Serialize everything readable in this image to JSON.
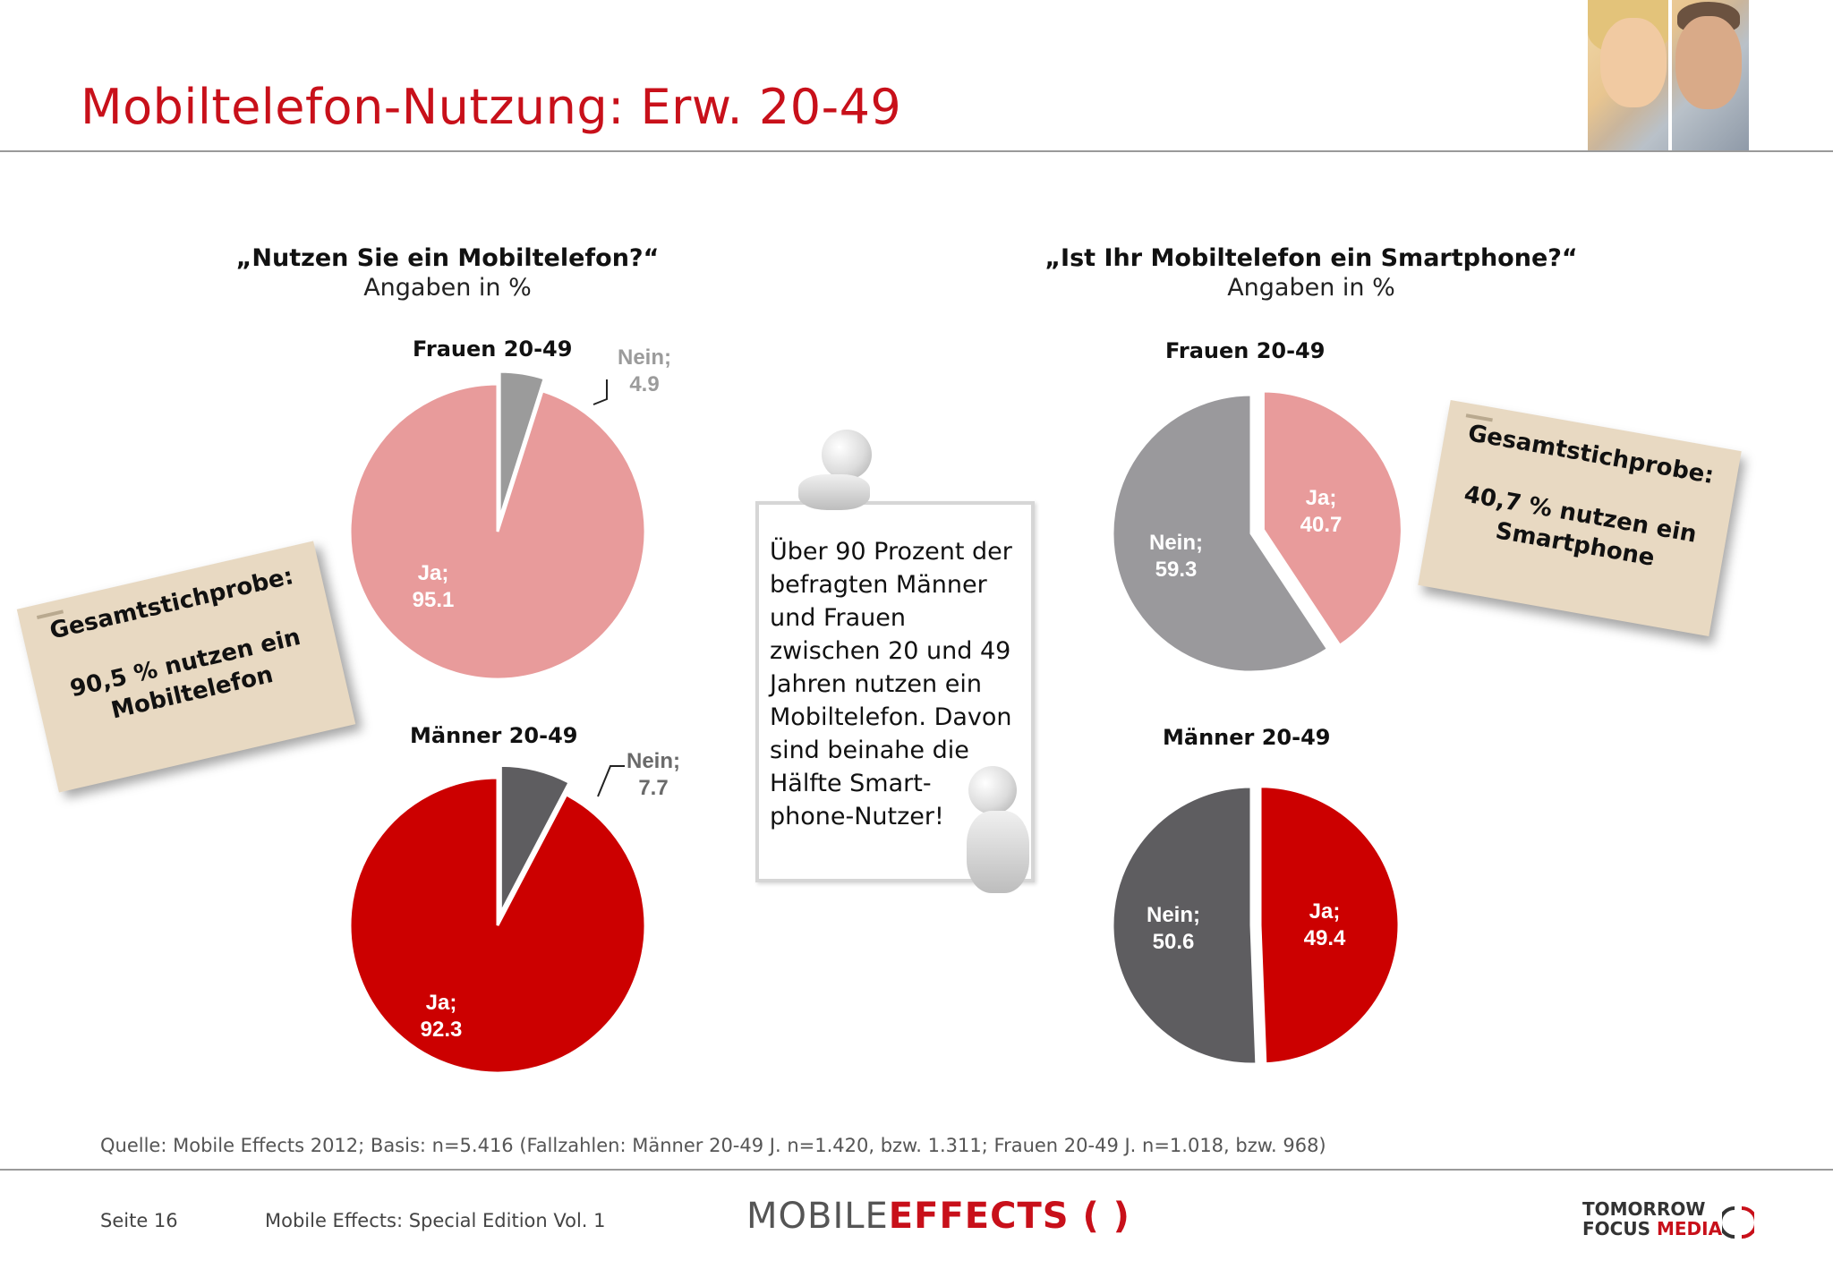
{
  "page": {
    "title": "Mobiltelefon-Nutzung: Erw. 20-49",
    "source": "Quelle: Mobile Effects 2012; Basis: n=5.416 (Fallzahlen: Männer 20-49 J. n=1.420, bzw. 1.311; Frauen 20-49 J. n=1.018, bzw. 968)",
    "page_number": "Seite 16",
    "edition": "Mobile Effects: Special Edition Vol. 1",
    "logo_mobile": "MOBILE",
    "logo_effects": "EFFECTS",
    "logo_tf_line1": "TOMORROW",
    "logo_tf_line2a": "FOCUS",
    "logo_tf_line2b": "MEDIA"
  },
  "left_section": {
    "question": "„Nutzen Sie ein Mobiltelefon?“",
    "unit": "Angaben in %"
  },
  "right_section": {
    "question": "„Ist Ihr Mobiltelefon ein Smartphone?“",
    "unit": "Angaben in %"
  },
  "note_left": {
    "title": "Gesamtstichprobe:",
    "line1": "90,5 % nutzen ein",
    "line2": "Mobiltelefon"
  },
  "note_right": {
    "title": "Gesamtstichprobe:",
    "line1": "40,7 % nutzen ein",
    "line2": "Smartphone"
  },
  "whiteboard_text": "Über 90 Prozent der\nbefragten Männer\nund Frauen\nzwischen 20 und 49\nJahren nutzen ein\nMobiltelefon. Davon\nsind beinahe die\nHälfte Smart-\nphone-Nutzer!",
  "colors": {
    "accent_red": "#c8101a",
    "frauen_ja": "#e89b9b",
    "frauen_nein_left": "#9b9b9b",
    "maenner_ja": "#cc0000",
    "maenner_nein": "#5e5d60",
    "frauen_nein_right": "#9a999c"
  },
  "chart_data": [
    {
      "type": "pie",
      "title": "Frauen 20-49",
      "slices": [
        {
          "label": "Nein",
          "value": 4.9,
          "text": "Nein;",
          "value_text": "4.9"
        },
        {
          "label": "Ja",
          "value": 95.1,
          "text": "Ja;",
          "value_text": "95.1"
        }
      ]
    },
    {
      "type": "pie",
      "title": "Männer 20-49",
      "slices": [
        {
          "label": "Nein",
          "value": 7.7,
          "text": "Nein;",
          "value_text": "7.7"
        },
        {
          "label": "Ja",
          "value": 92.3,
          "text": "Ja;",
          "value_text": "92.3"
        }
      ]
    },
    {
      "type": "pie",
      "title": "Frauen 20-49",
      "slices": [
        {
          "label": "Ja",
          "value": 40.7,
          "text": "Ja;",
          "value_text": "40.7"
        },
        {
          "label": "Nein",
          "value": 59.3,
          "text": "Nein;",
          "value_text": "59.3"
        }
      ]
    },
    {
      "type": "pie",
      "title": "Männer 20-49",
      "slices": [
        {
          "label": "Ja",
          "value": 49.4,
          "text": "Ja;",
          "value_text": "49.4"
        },
        {
          "label": "Nein",
          "value": 50.6,
          "text": "Nein;",
          "value_text": "50.6"
        }
      ]
    }
  ]
}
